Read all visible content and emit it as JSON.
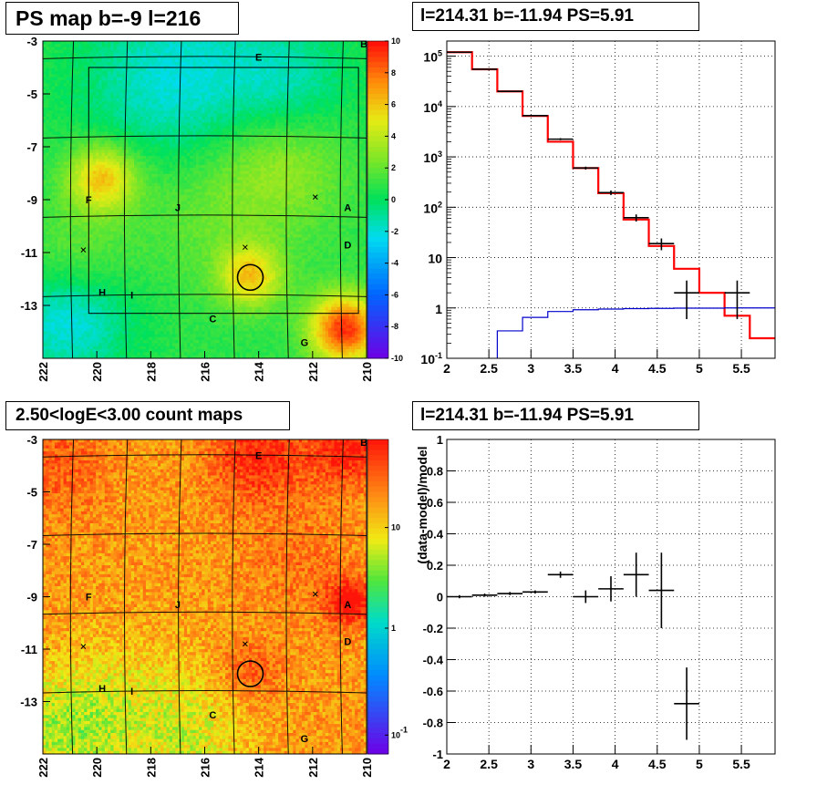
{
  "colors": {
    "frame": "#000000",
    "grid": "#000000",
    "model_line": "#ff0000",
    "background_line": "#0000cc",
    "data_marker": "#000000"
  },
  "chart_data": [
    {
      "type": "heatmap",
      "title": "PS map b=-9 l=216",
      "x_ticks": [
        "222",
        "220",
        "218",
        "216",
        "214",
        "212",
        "210"
      ],
      "y_ticks": [
        "-3",
        "-5",
        "-7",
        "-9",
        "-11",
        "-13"
      ],
      "xlim": [
        222,
        210
      ],
      "ylim": [
        -3,
        -15
      ],
      "colorbar": {
        "scale": "linear",
        "range": [
          -10,
          10
        ],
        "ticks": [
          "10",
          "8",
          "6",
          "4",
          "2",
          "0",
          "-2",
          "-4",
          "-6",
          "-8",
          "-10"
        ]
      },
      "source_labels": [
        {
          "text": "B",
          "l": 210.1,
          "b": -3.1
        },
        {
          "text": "E",
          "l": 214.0,
          "b": -3.6
        },
        {
          "text": "F",
          "l": 220.3,
          "b": -9.0
        },
        {
          "text": "J",
          "l": 217.0,
          "b": -9.3
        },
        {
          "text": "A",
          "l": 210.7,
          "b": -9.3
        },
        {
          "text": "D",
          "l": 210.7,
          "b": -10.7
        },
        {
          "text": "H",
          "l": 219.8,
          "b": -12.5
        },
        {
          "text": "I",
          "l": 218.7,
          "b": -12.6
        },
        {
          "text": "C",
          "l": 215.7,
          "b": -13.5
        },
        {
          "text": "G",
          "l": 212.3,
          "b": -14.4
        }
      ],
      "marked_position": {
        "l": 214.31,
        "b": -11.94
      }
    },
    {
      "type": "line",
      "title": "l=214.31 b=-11.94 PS=5.91",
      "xlim": [
        2,
        5.9
      ],
      "yscale": "log",
      "ylim": [
        0.1,
        200000
      ],
      "x_ticks": [
        "2",
        "2.5",
        "3",
        "3.5",
        "4",
        "4.5",
        "5",
        "5.5"
      ],
      "y_ticks": [
        "10^5",
        "10^4",
        "10^3",
        "10^2",
        "10",
        "1",
        "10^-1"
      ],
      "grid": true,
      "series": [
        {
          "role": "model",
          "edges": [
            2.0,
            2.3,
            2.6,
            2.9,
            3.2,
            3.5,
            3.8,
            4.1,
            4.4,
            4.7,
            5.0,
            5.3,
            5.6,
            5.9
          ],
          "values": [
            120000,
            55000,
            20000,
            6500,
            2000,
            600,
            190,
            57,
            17,
            6,
            2,
            0.7,
            0.25
          ]
        },
        {
          "role": "background",
          "edges": [
            2.6,
            2.9,
            3.2,
            3.5,
            3.8,
            4.1,
            4.4,
            4.7,
            5.0,
            5.3,
            5.6,
            5.9
          ],
          "values": [
            0.35,
            0.65,
            0.85,
            0.92,
            0.95,
            0.97,
            0.98,
            0.99,
            0.99,
            1.0,
            1.0
          ]
        },
        {
          "role": "data",
          "points": [
            {
              "x": 2.15,
              "y": 120000,
              "xerr": 0.15,
              "ylo": 119000,
              "yhi": 121000
            },
            {
              "x": 2.45,
              "y": 55000,
              "xerr": 0.15,
              "ylo": 54500,
              "yhi": 55500
            },
            {
              "x": 2.75,
              "y": 20000,
              "xerr": 0.15,
              "ylo": 19800,
              "yhi": 20200
            },
            {
              "x": 3.05,
              "y": 6600,
              "xerr": 0.15,
              "ylo": 6500,
              "yhi": 6700
            },
            {
              "x": 3.35,
              "y": 2250,
              "xerr": 0.15,
              "ylo": 2150,
              "yhi": 2350
            },
            {
              "x": 3.65,
              "y": 600,
              "xerr": 0.15,
              "ylo": 560,
              "yhi": 640
            },
            {
              "x": 3.95,
              "y": 195,
              "xerr": 0.15,
              "ylo": 175,
              "yhi": 215
            },
            {
              "x": 4.25,
              "y": 62,
              "xerr": 0.15,
              "ylo": 52,
              "yhi": 72
            },
            {
              "x": 4.55,
              "y": 19,
              "xerr": 0.15,
              "ylo": 14,
              "yhi": 24
            },
            {
              "x": 4.85,
              "y": 2.0,
              "xerr": 0.15,
              "ylo": 0.6,
              "yhi": 3.5
            },
            {
              "x": 5.45,
              "y": 2.0,
              "xerr": 0.15,
              "ylo": 0.6,
              "yhi": 3.5
            }
          ]
        }
      ]
    },
    {
      "type": "heatmap",
      "title": "2.50<logE<3.00 count maps",
      "x_ticks": [
        "222",
        "220",
        "218",
        "216",
        "214",
        "212",
        "210"
      ],
      "y_ticks": [
        "-3",
        "-5",
        "-7",
        "-9",
        "-11",
        "-13"
      ],
      "xlim": [
        222,
        210
      ],
      "ylim": [
        -3,
        -15
      ],
      "colorbar": {
        "scale": "log",
        "ticks": [
          "10",
          "1",
          "10^-1"
        ]
      },
      "source_labels": [
        {
          "text": "B",
          "l": 210.1,
          "b": -3.1
        },
        {
          "text": "E",
          "l": 214.0,
          "b": -3.6
        },
        {
          "text": "F",
          "l": 220.3,
          "b": -9.0
        },
        {
          "text": "J",
          "l": 217.0,
          "b": -9.3
        },
        {
          "text": "A",
          "l": 210.7,
          "b": -9.3
        },
        {
          "text": "D",
          "l": 210.7,
          "b": -10.7
        },
        {
          "text": "H",
          "l": 219.8,
          "b": -12.5
        },
        {
          "text": "I",
          "l": 218.7,
          "b": -12.6
        },
        {
          "text": "C",
          "l": 215.7,
          "b": -13.5
        },
        {
          "text": "G",
          "l": 212.3,
          "b": -14.4
        }
      ],
      "marked_position": {
        "l": 214.31,
        "b": -11.94
      }
    },
    {
      "type": "scatter",
      "title": "l=214.31 b=-11.94 PS=5.91",
      "ylabel": "(data-model)/model",
      "xlim": [
        2,
        5.9
      ],
      "ylim": [
        -1,
        1
      ],
      "x_ticks": [
        "2",
        "2.5",
        "3",
        "3.5",
        "4",
        "4.5",
        "5",
        "5.5"
      ],
      "y_ticks": [
        "1",
        "0.8",
        "0.6",
        "0.4",
        "0.2",
        "0",
        "-0.2",
        "-0.4",
        "-0.6",
        "-0.8",
        "-1"
      ],
      "grid": true,
      "points": [
        {
          "x": 2.15,
          "y": 0.0,
          "xerr": 0.15,
          "yerr": 0.01
        },
        {
          "x": 2.45,
          "y": 0.01,
          "xerr": 0.15,
          "yerr": 0.01
        },
        {
          "x": 2.75,
          "y": 0.02,
          "xerr": 0.15,
          "yerr": 0.01
        },
        {
          "x": 3.05,
          "y": 0.03,
          "xerr": 0.15,
          "yerr": 0.01
        },
        {
          "x": 3.35,
          "y": 0.14,
          "xerr": 0.15,
          "yerr": 0.02
        },
        {
          "x": 3.65,
          "y": 0.0,
          "xerr": 0.15,
          "yerr": 0.04
        },
        {
          "x": 3.95,
          "y": 0.05,
          "xerr": 0.15,
          "yerr": 0.08
        },
        {
          "x": 4.25,
          "y": 0.14,
          "xerr": 0.15,
          "yerr": 0.14
        },
        {
          "x": 4.55,
          "y": 0.04,
          "xerr": 0.15,
          "yerr": 0.24
        },
        {
          "x": 4.85,
          "y": -0.68,
          "xerr": 0.15,
          "yerr": 0.23
        }
      ]
    }
  ]
}
